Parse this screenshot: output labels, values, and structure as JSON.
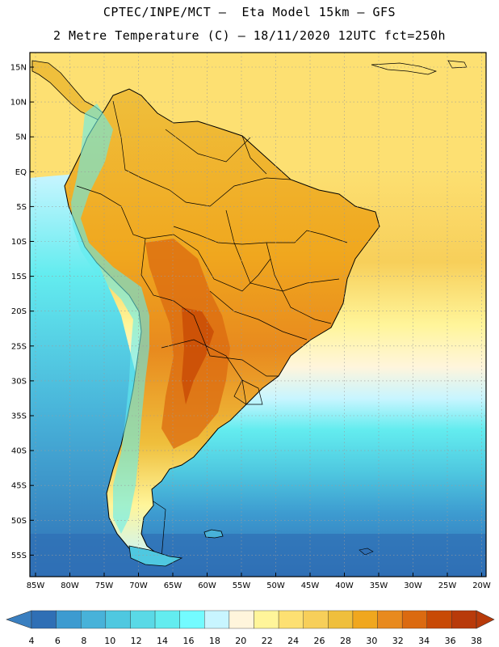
{
  "header": {
    "line1": "CPTEC/INPE/MCT –  Eta Model 15km – GFS",
    "line2": "2 Metre Temperature (C) – 18/11/2020 12UTC fct=250h"
  },
  "map": {
    "lat_labels": [
      "15N",
      "10N",
      "5N",
      "EQ",
      "5S",
      "10S",
      "15S",
      "20S",
      "25S",
      "30S",
      "35S",
      "40S",
      "45S",
      "50S",
      "55S"
    ],
    "lon_labels": [
      "85W",
      "80W",
      "75W",
      "70W",
      "65W",
      "60W",
      "55W",
      "50W",
      "45W",
      "40W",
      "35W",
      "30W",
      "25W",
      "20W"
    ]
  },
  "colorbar": {
    "labels": [
      "4",
      "6",
      "8",
      "10",
      "12",
      "14",
      "16",
      "18",
      "20",
      "22",
      "24",
      "26",
      "28",
      "30",
      "32",
      "34",
      "36",
      "38"
    ],
    "colors": [
      "#3a7fc0",
      "#2f6fb5",
      "#3d9bd0",
      "#48b2d9",
      "#4fc8e0",
      "#5ad9e6",
      "#63ecef",
      "#73fbff",
      "#c8f5ff",
      "#fff5dc",
      "#fff59a",
      "#fde072",
      "#f7cf5a",
      "#efbf3c",
      "#f0a71e",
      "#e88a1e",
      "#db6a10",
      "#c84a05",
      "#b83a0a"
    ],
    "low_color": "#3a7fc0",
    "high_color": "#b83a0a"
  }
}
